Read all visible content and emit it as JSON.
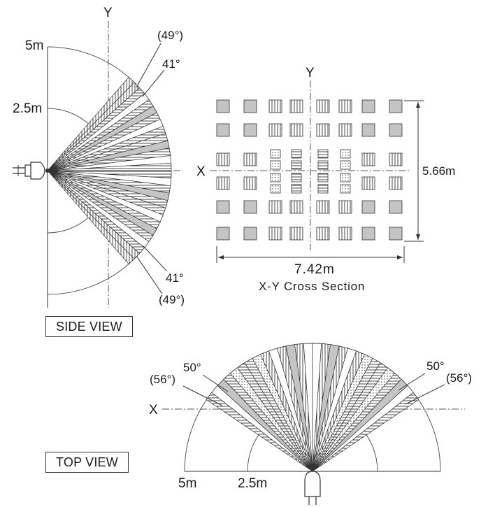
{
  "side_view": {
    "title": "SIDE VIEW",
    "axis_y": "Y",
    "axis_x": "X",
    "radius_outer": "5m",
    "radius_inner": "2.5m",
    "angle_inner_top": "41°",
    "angle_outer_top": "(49°)",
    "angle_inner_bottom": "41°",
    "angle_outer_bottom": "(49°)"
  },
  "cross_section": {
    "axis_y": "Y",
    "axis_x": "X",
    "width_dim": "7.42m",
    "height_dim": "5.66m",
    "caption": "X-Y Cross Section"
  },
  "top_view": {
    "title": "TOP VIEW",
    "axis_x": "X",
    "radius_outer": "5m",
    "radius_inner": "2.5m",
    "angle_inner_left": "50°",
    "angle_outer_left": "(56°)",
    "angle_inner_right": "50°",
    "angle_outer_right": "(56°)"
  },
  "colors": {
    "line": "#333333",
    "zone_gray": "#c4c4c4",
    "zone_white": "#ffffff"
  }
}
